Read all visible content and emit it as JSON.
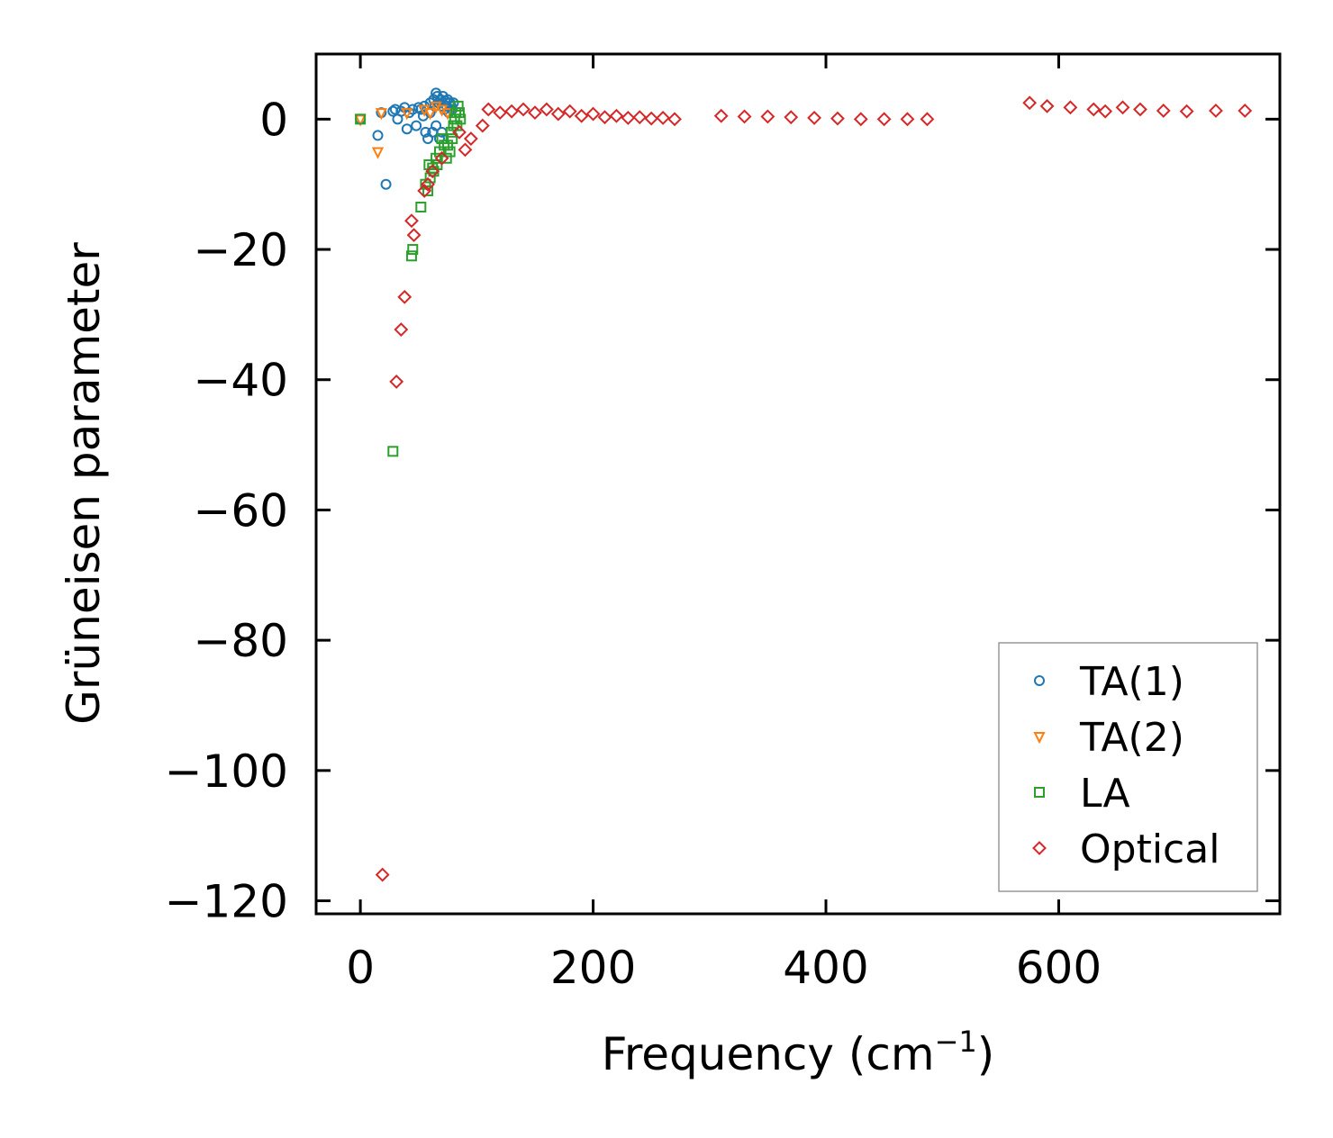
{
  "chart_data": {
    "type": "scatter",
    "xlabel": "Frequency (cm",
    "xlabel_sup": "−1",
    "xlabel_end": ")",
    "ylabel": "Grüneisen parameter",
    "xlim": [
      -38,
      790
    ],
    "ylim": [
      -122,
      10
    ],
    "xticks": [
      0,
      200,
      400,
      600
    ],
    "xtick_labels": [
      "0",
      "200",
      "400",
      "600"
    ],
    "yticks": [
      0,
      -20,
      -40,
      -60,
      -80,
      -100,
      -120
    ],
    "ytick_labels": [
      "0",
      "−20",
      "−40",
      "−60",
      "−80",
      "−100",
      "−120"
    ],
    "legend_position": "lower-right",
    "grid": false,
    "series": [
      {
        "name": "TA(1)",
        "marker": "circle",
        "color": "#1f77b4",
        "points": [
          [
            0,
            0
          ],
          [
            15,
            -2.5
          ],
          [
            18,
            1
          ],
          [
            22,
            -10
          ],
          [
            28,
            1.2
          ],
          [
            30,
            1.5
          ],
          [
            32,
            0
          ],
          [
            35,
            1.2
          ],
          [
            38,
            1.8
          ],
          [
            40,
            -1.5
          ],
          [
            42,
            1
          ],
          [
            45,
            1.5
          ],
          [
            48,
            -1
          ],
          [
            50,
            1.8
          ],
          [
            52,
            1.5
          ],
          [
            54,
            0.5
          ],
          [
            55,
            2
          ],
          [
            56,
            -2
          ],
          [
            58,
            -3
          ],
          [
            60,
            2.5
          ],
          [
            60,
            1
          ],
          [
            62,
            -2
          ],
          [
            63,
            3
          ],
          [
            64,
            2
          ],
          [
            65,
            4
          ],
          [
            65,
            -1
          ],
          [
            66,
            3.5
          ],
          [
            67,
            2.5
          ],
          [
            68,
            -3
          ],
          [
            69,
            3
          ],
          [
            70,
            2
          ],
          [
            70,
            -2
          ],
          [
            71,
            3.5
          ],
          [
            72,
            1.5
          ],
          [
            73,
            2.8
          ],
          [
            74,
            2
          ],
          [
            75,
            3
          ],
          [
            76,
            1
          ],
          [
            77,
            2.5
          ],
          [
            78,
            2
          ],
          [
            79,
            1.5
          ],
          [
            80,
            2.5
          ]
        ]
      },
      {
        "name": "TA(2)",
        "marker": "triangle-down",
        "color": "#ff7f0e",
        "points": [
          [
            0,
            0
          ],
          [
            15,
            -5
          ],
          [
            18,
            1
          ],
          [
            40,
            1
          ],
          [
            55,
            1.5
          ],
          [
            60,
            1
          ],
          [
            65,
            2
          ],
          [
            70,
            1.5
          ],
          [
            75,
            1
          ]
        ]
      },
      {
        "name": "LA",
        "marker": "square",
        "color": "#2ca02c",
        "points": [
          [
            0,
            0
          ],
          [
            28,
            -51
          ],
          [
            44,
            -21
          ],
          [
            45,
            -20
          ],
          [
            52,
            -13.5
          ],
          [
            56,
            -10
          ],
          [
            58,
            -11
          ],
          [
            59,
            -7
          ],
          [
            60,
            -9
          ],
          [
            62,
            -7.5
          ],
          [
            63,
            -8
          ],
          [
            65,
            -6
          ],
          [
            66,
            -7
          ],
          [
            68,
            -5
          ],
          [
            70,
            -3
          ],
          [
            72,
            -4
          ],
          [
            74,
            -6
          ],
          [
            75,
            -4
          ],
          [
            77,
            -5
          ],
          [
            78,
            -2
          ],
          [
            79,
            -3
          ],
          [
            80,
            -1
          ],
          [
            81,
            0
          ],
          [
            82,
            1
          ],
          [
            83,
            -1
          ],
          [
            84,
            2
          ],
          [
            85,
            1
          ],
          [
            86,
            0
          ]
        ]
      },
      {
        "name": "Optical",
        "marker": "diamond",
        "color": "#d62728",
        "points": [
          [
            19,
            -116
          ],
          [
            31,
            -40.3
          ],
          [
            35,
            -32.3
          ],
          [
            38,
            -27.3
          ],
          [
            44,
            -15.6
          ],
          [
            46,
            -17.8
          ],
          [
            55,
            -11
          ],
          [
            58,
            -10
          ],
          [
            62,
            -8
          ],
          [
            70,
            -6
          ],
          [
            90,
            -4.7
          ],
          [
            85,
            -2
          ],
          [
            95,
            -3
          ],
          [
            105,
            -1
          ],
          [
            110,
            1.5
          ],
          [
            120,
            1
          ],
          [
            130,
            1.2
          ],
          [
            140,
            1.5
          ],
          [
            150,
            1
          ],
          [
            160,
            1.5
          ],
          [
            170,
            0.8
          ],
          [
            180,
            1.2
          ],
          [
            190,
            0.5
          ],
          [
            200,
            0.8
          ],
          [
            210,
            0.3
          ],
          [
            220,
            0.5
          ],
          [
            230,
            0.2
          ],
          [
            240,
            0.3
          ],
          [
            250,
            0.1
          ],
          [
            260,
            0.2
          ],
          [
            270,
            0
          ],
          [
            310,
            0.5
          ],
          [
            330,
            0.4
          ],
          [
            350,
            0.4
          ],
          [
            370,
            0.3
          ],
          [
            390,
            0.2
          ],
          [
            410,
            0.1
          ],
          [
            430,
            0
          ],
          [
            450,
            0
          ],
          [
            470,
            0
          ],
          [
            487,
            0
          ],
          [
            575,
            2.5
          ],
          [
            590,
            2
          ],
          [
            610,
            1.8
          ],
          [
            630,
            1.5
          ],
          [
            640,
            1.2
          ],
          [
            655,
            1.8
          ],
          [
            670,
            1.5
          ],
          [
            690,
            1.3
          ],
          [
            710,
            1.2
          ],
          [
            735,
            1.3
          ],
          [
            760,
            1.3
          ]
        ]
      }
    ]
  }
}
